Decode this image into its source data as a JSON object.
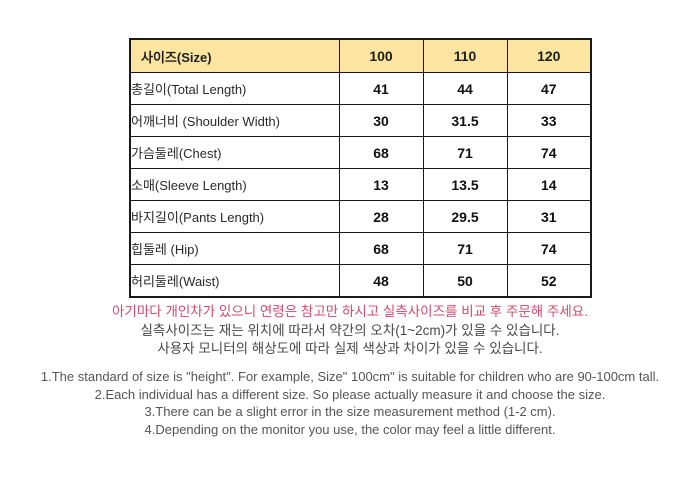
{
  "table": {
    "header": {
      "label": "사이즈(Size)",
      "sizes": [
        "100",
        "110",
        "120"
      ]
    },
    "rows": [
      {
        "label": "총길이(Total Length)",
        "values": [
          "41",
          "44",
          "47"
        ]
      },
      {
        "label": "어깨너비 (Shoulder Width)",
        "values": [
          "30",
          "31.5",
          "33"
        ]
      },
      {
        "label": "가슴둘레(Chest)",
        "values": [
          "68",
          "71",
          "74"
        ]
      },
      {
        "label": "소매(Sleeve Length)",
        "values": [
          "13",
          "13.5",
          "14"
        ]
      },
      {
        "label": "바지길이(Pants Length)",
        "values": [
          "28",
          "29.5",
          "31"
        ]
      },
      {
        "label": "힙둘레 (Hip)",
        "values": [
          "68",
          "71",
          "74"
        ]
      },
      {
        "label": "허리둘레(Waist)",
        "values": [
          "48",
          "50",
          "52"
        ]
      }
    ]
  },
  "notes_kr": {
    "highlight": "아기마다 개인차가 있으니 연령은 참고만 하시고 실측사이즈를 비교 후 주문해 주세요.",
    "line2": "실측사이즈는 재는 위치에 따라서 약간의  오차(1~2cm)가 있을 수 있습니다.",
    "line3": "사용자 모니터의 해상도에 따라 실제 색상과 차이가 있을 수 있습니다."
  },
  "notes_en": {
    "line1": "1.The standard of size is \"height\". For example,  Size\" 100cm\" is suitable for children who are 90-100cm tall.",
    "line2": "2.Each individual has a different size. So please actually measure it and choose the size.",
    "line3": "3.There can be a slight error in the size measurement method (1-2 cm).",
    "line4": "4.Depending on the monitor you use, the color may feel a little different."
  },
  "colors": {
    "header_bg": "#fbe5a1",
    "table_border": "#1a1a1a",
    "highlight_text": "#d6486e",
    "korean_note_text": "#484848",
    "english_note_text": "#555555"
  }
}
